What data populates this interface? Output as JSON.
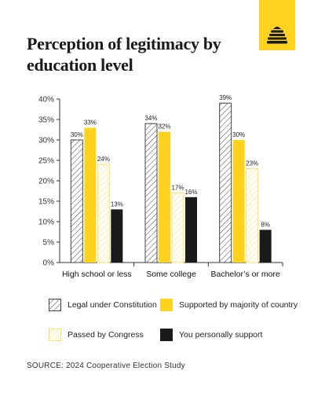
{
  "header": {
    "title": "Perception of legitimacy by education level",
    "logo_icon": "beehive-icon"
  },
  "colors": {
    "yellow": "#ffd21f",
    "black": "#1a1a1a",
    "hatch_dark": "#444444",
    "hatch_light": "#ffe060"
  },
  "chart_data": {
    "type": "bar",
    "categories": [
      "High school or less",
      "Some college",
      "Bachelor’s or more"
    ],
    "series": [
      {
        "name": "Legal under Constitution",
        "style": "hatch-dark",
        "values": [
          30,
          34,
          39
        ]
      },
      {
        "name": "Supported by majority of country",
        "style": "solid-yellow",
        "values": [
          33,
          32,
          30
        ]
      },
      {
        "name": "Passed by Congress",
        "style": "hatch-yellow",
        "values": [
          24,
          17,
          23
        ]
      },
      {
        "name": "You personally support",
        "style": "solid-black",
        "values": [
          13,
          16,
          8
        ]
      }
    ],
    "ylim": [
      0,
      40
    ],
    "yticks": [
      0,
      5,
      10,
      15,
      20,
      25,
      30,
      35,
      40
    ],
    "ytick_suffix": "%",
    "value_label_suffix": "%",
    "grid": false,
    "legend_position": "bottom"
  },
  "legend": {
    "items": [
      {
        "label": "Legal under Constitution",
        "swatch": "hatch-dark"
      },
      {
        "label": "Supported by majority of country",
        "swatch": "solid-yellow"
      },
      {
        "label": "Passed by Congress",
        "swatch": "hatch-yellow"
      },
      {
        "label": "You personally support",
        "swatch": "solid-black"
      }
    ]
  },
  "footer": {
    "source": "SOURCE: 2024 Cooperative Election Study"
  }
}
